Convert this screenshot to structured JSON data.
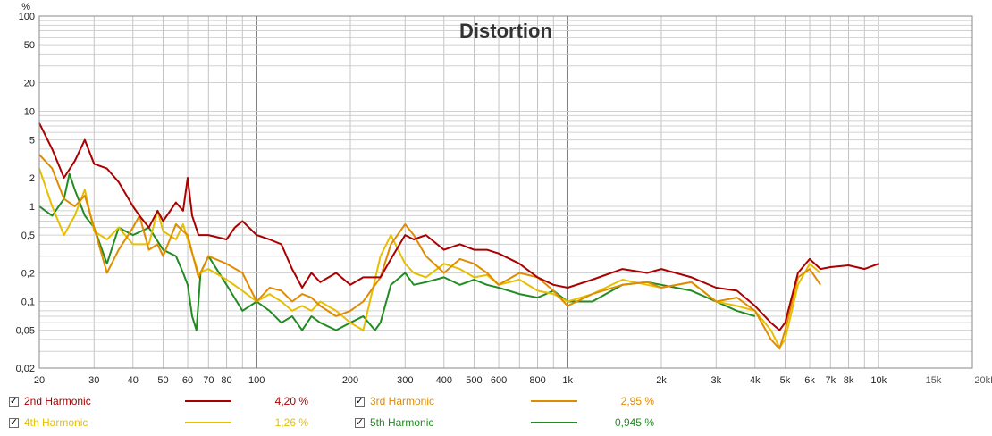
{
  "chart_data": {
    "type": "line",
    "title": "Distortion",
    "y_unit": "%",
    "x_scale": "log",
    "y_scale": "log",
    "xlim": [
      20,
      20000
    ],
    "ylim": [
      0.02,
      100
    ],
    "grid": true,
    "x_tick_labels": [
      {
        "v": 20,
        "label": "20"
      },
      {
        "v": 30,
        "label": "30"
      },
      {
        "v": 40,
        "label": "40"
      },
      {
        "v": 50,
        "label": "50"
      },
      {
        "v": 60,
        "label": "60"
      },
      {
        "v": 70,
        "label": "70"
      },
      {
        "v": 80,
        "label": "80"
      },
      {
        "v": 100,
        "label": "100"
      },
      {
        "v": 200,
        "label": "200"
      },
      {
        "v": 300,
        "label": "300"
      },
      {
        "v": 400,
        "label": "400"
      },
      {
        "v": 500,
        "label": "500"
      },
      {
        "v": 600,
        "label": "600"
      },
      {
        "v": 800,
        "label": "800"
      },
      {
        "v": 1000,
        "label": "1k"
      },
      {
        "v": 2000,
        "label": "2k"
      },
      {
        "v": 3000,
        "label": "3k"
      },
      {
        "v": 4000,
        "label": "4k"
      },
      {
        "v": 5000,
        "label": "5k"
      },
      {
        "v": 6000,
        "label": "6k"
      },
      {
        "v": 7000,
        "label": "7k"
      },
      {
        "v": 8000,
        "label": "8k"
      },
      {
        "v": 10000,
        "label": "10k"
      },
      {
        "v": 15000,
        "label": "15k"
      },
      {
        "v": 20000,
        "label": "20kHz"
      }
    ],
    "y_tick_labels": [
      {
        "v": 100,
        "label": "100"
      },
      {
        "v": 50,
        "label": "50"
      },
      {
        "v": 20,
        "label": "20"
      },
      {
        "v": 10,
        "label": "10"
      },
      {
        "v": 5,
        "label": "5"
      },
      {
        "v": 2,
        "label": "2"
      },
      {
        "v": 1,
        "label": "1"
      },
      {
        "v": 0.5,
        "label": "0,5"
      },
      {
        "v": 0.2,
        "label": "0,2"
      },
      {
        "v": 0.1,
        "label": "0,1"
      },
      {
        "v": 0.05,
        "label": "0,05"
      },
      {
        "v": 0.02,
        "label": "0,02"
      }
    ],
    "series": [
      {
        "name": "2nd Harmonic",
        "value_label": "4,20 %",
        "color": "#aa0000",
        "points": [
          [
            20,
            7.5
          ],
          [
            22,
            4
          ],
          [
            24,
            2
          ],
          [
            26,
            3
          ],
          [
            28,
            5
          ],
          [
            30,
            2.8
          ],
          [
            33,
            2.5
          ],
          [
            36,
            1.8
          ],
          [
            40,
            1.0
          ],
          [
            42,
            0.8
          ],
          [
            45,
            0.6
          ],
          [
            48,
            0.9
          ],
          [
            50,
            0.7
          ],
          [
            55,
            1.1
          ],
          [
            58,
            0.9
          ],
          [
            60,
            2.0
          ],
          [
            62,
            0.8
          ],
          [
            65,
            0.5
          ],
          [
            70,
            0.5
          ],
          [
            80,
            0.45
          ],
          [
            85,
            0.6
          ],
          [
            90,
            0.7
          ],
          [
            100,
            0.5
          ],
          [
            110,
            0.45
          ],
          [
            120,
            0.4
          ],
          [
            130,
            0.22
          ],
          [
            140,
            0.14
          ],
          [
            150,
            0.2
          ],
          [
            160,
            0.16
          ],
          [
            180,
            0.2
          ],
          [
            200,
            0.15
          ],
          [
            220,
            0.18
          ],
          [
            250,
            0.18
          ],
          [
            270,
            0.28
          ],
          [
            300,
            0.5
          ],
          [
            320,
            0.45
          ],
          [
            350,
            0.5
          ],
          [
            400,
            0.35
          ],
          [
            450,
            0.4
          ],
          [
            500,
            0.35
          ],
          [
            550,
            0.35
          ],
          [
            600,
            0.32
          ],
          [
            700,
            0.25
          ],
          [
            800,
            0.18
          ],
          [
            900,
            0.15
          ],
          [
            1000,
            0.14
          ],
          [
            1200,
            0.17
          ],
          [
            1500,
            0.22
          ],
          [
            1800,
            0.2
          ],
          [
            2000,
            0.22
          ],
          [
            2500,
            0.18
          ],
          [
            3000,
            0.14
          ],
          [
            3500,
            0.13
          ],
          [
            4000,
            0.09
          ],
          [
            4500,
            0.06
          ],
          [
            4800,
            0.05
          ],
          [
            5000,
            0.06
          ],
          [
            5500,
            0.2
          ],
          [
            6000,
            0.28
          ],
          [
            6500,
            0.22
          ],
          [
            7000,
            0.23
          ],
          [
            8000,
            0.24
          ],
          [
            9000,
            0.22
          ],
          [
            10000,
            0.25
          ]
        ]
      },
      {
        "name": "3rd Harmonic",
        "value_label": "2,95 %",
        "color": "#e08c00",
        "points": [
          [
            20,
            3.5
          ],
          [
            22,
            2.5
          ],
          [
            24,
            1.2
          ],
          [
            26,
            1.0
          ],
          [
            28,
            1.3
          ],
          [
            30,
            0.6
          ],
          [
            33,
            0.2
          ],
          [
            36,
            0.35
          ],
          [
            40,
            0.6
          ],
          [
            42,
            0.8
          ],
          [
            45,
            0.35
          ],
          [
            48,
            0.4
          ],
          [
            50,
            0.3
          ],
          [
            55,
            0.65
          ],
          [
            58,
            0.55
          ],
          [
            60,
            0.5
          ],
          [
            65,
            0.18
          ],
          [
            70,
            0.3
          ],
          [
            80,
            0.25
          ],
          [
            90,
            0.2
          ],
          [
            100,
            0.1
          ],
          [
            110,
            0.14
          ],
          [
            120,
            0.13
          ],
          [
            130,
            0.1
          ],
          [
            140,
            0.12
          ],
          [
            150,
            0.11
          ],
          [
            160,
            0.09
          ],
          [
            180,
            0.07
          ],
          [
            200,
            0.08
          ],
          [
            220,
            0.1
          ],
          [
            250,
            0.18
          ],
          [
            270,
            0.4
          ],
          [
            300,
            0.65
          ],
          [
            320,
            0.5
          ],
          [
            350,
            0.3
          ],
          [
            400,
            0.2
          ],
          [
            450,
            0.28
          ],
          [
            500,
            0.25
          ],
          [
            550,
            0.2
          ],
          [
            600,
            0.15
          ],
          [
            700,
            0.2
          ],
          [
            800,
            0.18
          ],
          [
            900,
            0.13
          ],
          [
            1000,
            0.09
          ],
          [
            1200,
            0.12
          ],
          [
            1500,
            0.15
          ],
          [
            1800,
            0.16
          ],
          [
            2000,
            0.14
          ],
          [
            2500,
            0.16
          ],
          [
            3000,
            0.1
          ],
          [
            3500,
            0.11
          ],
          [
            4000,
            0.08
          ],
          [
            4500,
            0.04
          ],
          [
            4800,
            0.032
          ],
          [
            5000,
            0.05
          ],
          [
            5500,
            0.18
          ],
          [
            6000,
            0.22
          ],
          [
            6500,
            0.15
          ]
        ]
      },
      {
        "name": "4th Harmonic",
        "value_label": "1,26 %",
        "color": "#e6c000",
        "points": [
          [
            20,
            2.5
          ],
          [
            22,
            1.0
          ],
          [
            24,
            0.5
          ],
          [
            26,
            0.8
          ],
          [
            28,
            1.5
          ],
          [
            30,
            0.55
          ],
          [
            33,
            0.45
          ],
          [
            36,
            0.6
          ],
          [
            40,
            0.4
          ],
          [
            45,
            0.4
          ],
          [
            48,
            0.9
          ],
          [
            50,
            0.55
          ],
          [
            55,
            0.45
          ],
          [
            58,
            0.65
          ],
          [
            60,
            0.45
          ],
          [
            65,
            0.2
          ],
          [
            70,
            0.22
          ],
          [
            80,
            0.17
          ],
          [
            90,
            0.13
          ],
          [
            100,
            0.1
          ],
          [
            110,
            0.12
          ],
          [
            120,
            0.1
          ],
          [
            130,
            0.08
          ],
          [
            140,
            0.09
          ],
          [
            150,
            0.08
          ],
          [
            160,
            0.1
          ],
          [
            180,
            0.08
          ],
          [
            200,
            0.06
          ],
          [
            220,
            0.05
          ],
          [
            250,
            0.3
          ],
          [
            270,
            0.5
          ],
          [
            300,
            0.25
          ],
          [
            320,
            0.2
          ],
          [
            350,
            0.18
          ],
          [
            400,
            0.25
          ],
          [
            450,
            0.22
          ],
          [
            500,
            0.18
          ],
          [
            550,
            0.19
          ],
          [
            600,
            0.15
          ],
          [
            700,
            0.17
          ],
          [
            800,
            0.13
          ],
          [
            900,
            0.12
          ],
          [
            1000,
            0.1
          ],
          [
            1200,
            0.12
          ],
          [
            1500,
            0.17
          ],
          [
            1800,
            0.15
          ],
          [
            2000,
            0.14
          ],
          [
            2500,
            0.16
          ],
          [
            3000,
            0.1
          ],
          [
            3500,
            0.09
          ],
          [
            4000,
            0.08
          ],
          [
            4500,
            0.05
          ],
          [
            4800,
            0.033
          ],
          [
            5000,
            0.04
          ],
          [
            5500,
            0.15
          ],
          [
            6000,
            0.25
          ],
          [
            6500,
            0.2
          ]
        ]
      },
      {
        "name": "5th Harmonic",
        "value_label": "0,945 %",
        "color": "#228b22",
        "points": [
          [
            20,
            1.0
          ],
          [
            22,
            0.8
          ],
          [
            24,
            1.2
          ],
          [
            25,
            2.2
          ],
          [
            26,
            1.5
          ],
          [
            28,
            0.8
          ],
          [
            30,
            0.6
          ],
          [
            33,
            0.25
          ],
          [
            36,
            0.6
          ],
          [
            40,
            0.5
          ],
          [
            45,
            0.6
          ],
          [
            50,
            0.35
          ],
          [
            55,
            0.3
          ],
          [
            58,
            0.2
          ],
          [
            60,
            0.15
          ],
          [
            62,
            0.07
          ],
          [
            64,
            0.05
          ],
          [
            66,
            0.2
          ],
          [
            70,
            0.3
          ],
          [
            80,
            0.15
          ],
          [
            90,
            0.08
          ],
          [
            100,
            0.1
          ],
          [
            110,
            0.08
          ],
          [
            120,
            0.06
          ],
          [
            130,
            0.07
          ],
          [
            140,
            0.05
          ],
          [
            150,
            0.07
          ],
          [
            160,
            0.06
          ],
          [
            180,
            0.05
          ],
          [
            200,
            0.06
          ],
          [
            220,
            0.07
          ],
          [
            240,
            0.05
          ],
          [
            250,
            0.06
          ],
          [
            270,
            0.15
          ],
          [
            300,
            0.2
          ],
          [
            320,
            0.15
          ],
          [
            350,
            0.16
          ],
          [
            400,
            0.18
          ],
          [
            450,
            0.15
          ],
          [
            500,
            0.17
          ],
          [
            550,
            0.15
          ],
          [
            600,
            0.14
          ],
          [
            700,
            0.12
          ],
          [
            800,
            0.11
          ],
          [
            900,
            0.13
          ],
          [
            1000,
            0.1
          ],
          [
            1200,
            0.1
          ],
          [
            1500,
            0.15
          ],
          [
            1800,
            0.16
          ],
          [
            2000,
            0.15
          ],
          [
            2500,
            0.13
          ],
          [
            3000,
            0.1
          ],
          [
            3500,
            0.08
          ],
          [
            4000,
            0.07
          ]
        ]
      }
    ]
  }
}
